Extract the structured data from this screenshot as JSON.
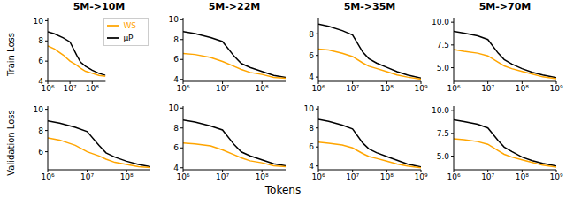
{
  "x_label": "Tokens",
  "chart_data": [
    {
      "type": "line",
      "title": "5M->10M",
      "y_label": "Train Loss",
      "legend": "upper right",
      "log": "x",
      "x": [
        1000000,
        2000000,
        5000000,
        10000000,
        20000000,
        30000000,
        50000000,
        100000000,
        200000000,
        400000000
      ],
      "xlim": [
        1000000,
        400000000
      ],
      "xticks": [
        {
          "value": 1000000,
          "label": "10⁶"
        },
        {
          "value": 10000000,
          "label": "10⁷"
        },
        {
          "value": 100000000,
          "label": "10⁸"
        }
      ],
      "ylim": [
        4,
        10.3
      ],
      "yticks": [
        4,
        6,
        8,
        10
      ],
      "series": [
        {
          "name": "μP",
          "color": "#000000",
          "values": [
            8.9,
            8.7,
            8.3,
            7.9,
            6.6,
            5.9,
            5.5,
            5.1,
            4.8,
            4.6
          ]
        },
        {
          "name": "WS",
          "color": "#ffa500",
          "values": [
            7.5,
            7.2,
            6.6,
            6.0,
            5.6,
            5.3,
            5.0,
            4.8,
            4.6,
            4.5
          ]
        }
      ]
    },
    {
      "type": "line",
      "title": "5M->22M",
      "log": "x",
      "x": [
        1000000,
        2000000,
        5000000,
        10000000,
        20000000,
        30000000,
        50000000,
        100000000,
        200000000,
        400000000
      ],
      "xlim": [
        1000000,
        400000000
      ],
      "xticks": [
        {
          "value": 1000000,
          "label": "10⁶"
        },
        {
          "value": 10000000,
          "label": "10⁷"
        },
        {
          "value": 100000000,
          "label": "10⁸"
        }
      ],
      "ylim": [
        3.8,
        10.2
      ],
      "yticks": [
        4,
        6,
        8,
        10
      ],
      "series": [
        {
          "name": "μP",
          "color": "#000000",
          "values": [
            8.8,
            8.6,
            8.2,
            7.8,
            6.3,
            5.6,
            5.2,
            4.8,
            4.4,
            4.2
          ]
        },
        {
          "name": "WS",
          "color": "#ffa500",
          "values": [
            6.6,
            6.5,
            6.2,
            5.8,
            5.3,
            5.0,
            4.7,
            4.5,
            4.2,
            4.1
          ]
        }
      ]
    },
    {
      "type": "line",
      "title": "5M->35M",
      "log": "x",
      "x": [
        1000000,
        2000000,
        5000000,
        10000000,
        20000000,
        30000000,
        50000000,
        100000000,
        200000000,
        400000000,
        1000000000
      ],
      "xlim": [
        1000000,
        1000000000
      ],
      "xticks": [
        {
          "value": 1000000,
          "label": "10⁶"
        },
        {
          "value": 10000000,
          "label": "10⁷"
        },
        {
          "value": 100000000,
          "label": "10⁸"
        },
        {
          "value": 1000000000,
          "label": "10⁹"
        }
      ],
      "ylim": [
        3.6,
        9.5
      ],
      "yticks": [
        4,
        6,
        8
      ],
      "series": [
        {
          "name": "μP",
          "color": "#000000",
          "values": [
            8.9,
            8.7,
            8.3,
            7.9,
            6.3,
            5.7,
            5.3,
            4.9,
            4.5,
            4.2,
            3.9
          ]
        },
        {
          "name": "WS",
          "color": "#ffa500",
          "values": [
            6.6,
            6.5,
            6.2,
            5.9,
            5.3,
            5.0,
            4.8,
            4.5,
            4.2,
            4.0,
            3.8
          ]
        }
      ]
    },
    {
      "type": "line",
      "title": "5M->70M",
      "log": "x",
      "x": [
        1000000,
        2000000,
        5000000,
        10000000,
        20000000,
        30000000,
        50000000,
        100000000,
        200000000,
        400000000,
        1000000000
      ],
      "xlim": [
        1000000,
        1000000000
      ],
      "xticks": [
        {
          "value": 1000000,
          "label": "10⁶"
        },
        {
          "value": 10000000,
          "label": "10⁷"
        },
        {
          "value": 100000000,
          "label": "10⁸"
        },
        {
          "value": 1000000000,
          "label": "10⁹"
        }
      ],
      "ylim": [
        3.5,
        10.5
      ],
      "yticks": [
        {
          "value": 5,
          "label": "5.0"
        },
        7.5,
        {
          "value": 10,
          "label": "10.0"
        }
      ],
      "series": [
        {
          "name": "μP",
          "color": "#000000",
          "values": [
            9.0,
            8.8,
            8.5,
            8.1,
            6.6,
            5.9,
            5.4,
            4.9,
            4.5,
            4.2,
            3.9
          ]
        },
        {
          "name": "WS",
          "color": "#ffa500",
          "values": [
            7.0,
            6.8,
            6.6,
            6.3,
            5.6,
            5.2,
            4.9,
            4.6,
            4.3,
            4.0,
            3.8
          ]
        }
      ]
    },
    {
      "type": "line",
      "y_label": "Validation Loss",
      "log": "x",
      "x": [
        1000000,
        2000000,
        5000000,
        10000000,
        20000000,
        30000000,
        50000000,
        100000000,
        200000000,
        400000000
      ],
      "xlim": [
        1000000,
        400000000
      ],
      "xticks": [
        {
          "value": 1000000,
          "label": "10⁶"
        },
        {
          "value": 10000000,
          "label": "10⁷"
        },
        {
          "value": 100000000,
          "label": "10⁸"
        }
      ],
      "ylim": [
        4.3,
        10.3
      ],
      "yticks": [
        6,
        8,
        10
      ],
      "series": [
        {
          "name": "μP",
          "color": "#000000",
          "values": [
            8.9,
            8.7,
            8.3,
            7.9,
            6.6,
            5.9,
            5.5,
            5.1,
            4.8,
            4.6
          ]
        },
        {
          "name": "WS",
          "color": "#ffa500",
          "values": [
            7.3,
            7.1,
            6.6,
            6.0,
            5.6,
            5.3,
            5.0,
            4.8,
            4.6,
            4.5
          ]
        }
      ]
    },
    {
      "type": "line",
      "log": "x",
      "x": [
        1000000,
        2000000,
        5000000,
        10000000,
        20000000,
        30000000,
        50000000,
        100000000,
        200000000,
        400000000
      ],
      "xlim": [
        1000000,
        400000000
      ],
      "xticks": [
        {
          "value": 1000000,
          "label": "10⁶"
        },
        {
          "value": 10000000,
          "label": "10⁷"
        },
        {
          "value": 100000000,
          "label": "10⁸"
        }
      ],
      "ylim": [
        3.8,
        10.2
      ],
      "yticks": [
        4,
        6,
        8,
        10
      ],
      "series": [
        {
          "name": "μP",
          "color": "#000000",
          "values": [
            8.8,
            8.6,
            8.2,
            7.8,
            6.3,
            5.6,
            5.2,
            4.8,
            4.4,
            4.2
          ]
        },
        {
          "name": "WS",
          "color": "#ffa500",
          "values": [
            6.5,
            6.4,
            6.2,
            5.8,
            5.3,
            5.0,
            4.7,
            4.5,
            4.2,
            4.1
          ]
        }
      ]
    },
    {
      "type": "line",
      "log": "x",
      "x": [
        1000000,
        2000000,
        5000000,
        10000000,
        20000000,
        30000000,
        50000000,
        100000000,
        200000000,
        400000000,
        1000000000
      ],
      "xlim": [
        1000000,
        1000000000
      ],
      "xticks": [
        {
          "value": 1000000,
          "label": "10⁶"
        },
        {
          "value": 10000000,
          "label": "10⁷"
        },
        {
          "value": 100000000,
          "label": "10⁸"
        },
        {
          "value": 1000000000,
          "label": "10⁹"
        }
      ],
      "ylim": [
        3.6,
        10.3
      ],
      "yticks": [
        4,
        6,
        8,
        10
      ],
      "series": [
        {
          "name": "μP",
          "color": "#000000",
          "values": [
            8.9,
            8.7,
            8.3,
            7.9,
            6.4,
            5.8,
            5.4,
            5.0,
            4.6,
            4.2,
            3.9
          ]
        },
        {
          "name": "WS",
          "color": "#ffa500",
          "values": [
            6.5,
            6.4,
            6.2,
            5.9,
            5.3,
            5.0,
            4.8,
            4.5,
            4.2,
            4.0,
            3.8
          ]
        }
      ]
    },
    {
      "type": "line",
      "log": "x",
      "x": [
        1000000,
        2000000,
        5000000,
        10000000,
        20000000,
        30000000,
        50000000,
        100000000,
        200000000,
        400000000,
        1000000000
      ],
      "xlim": [
        1000000,
        1000000000
      ],
      "xticks": [
        {
          "value": 1000000,
          "label": "10⁶"
        },
        {
          "value": 10000000,
          "label": "10⁷"
        },
        {
          "value": 100000000,
          "label": "10⁸"
        },
        {
          "value": 1000000000,
          "label": "10⁹"
        }
      ],
      "ylim": [
        3.5,
        10.5
      ],
      "yticks": [
        {
          "value": 5,
          "label": "5.0"
        },
        7.5,
        {
          "value": 10,
          "label": "10.0"
        }
      ],
      "series": [
        {
          "name": "μP",
          "color": "#000000",
          "values": [
            9.0,
            8.8,
            8.5,
            8.1,
            6.7,
            6.0,
            5.5,
            4.9,
            4.5,
            4.2,
            3.9
          ]
        },
        {
          "name": "WS",
          "color": "#ffa500",
          "values": [
            6.9,
            6.8,
            6.6,
            6.3,
            5.6,
            5.2,
            4.9,
            4.6,
            4.3,
            4.0,
            3.8
          ]
        }
      ]
    }
  ]
}
